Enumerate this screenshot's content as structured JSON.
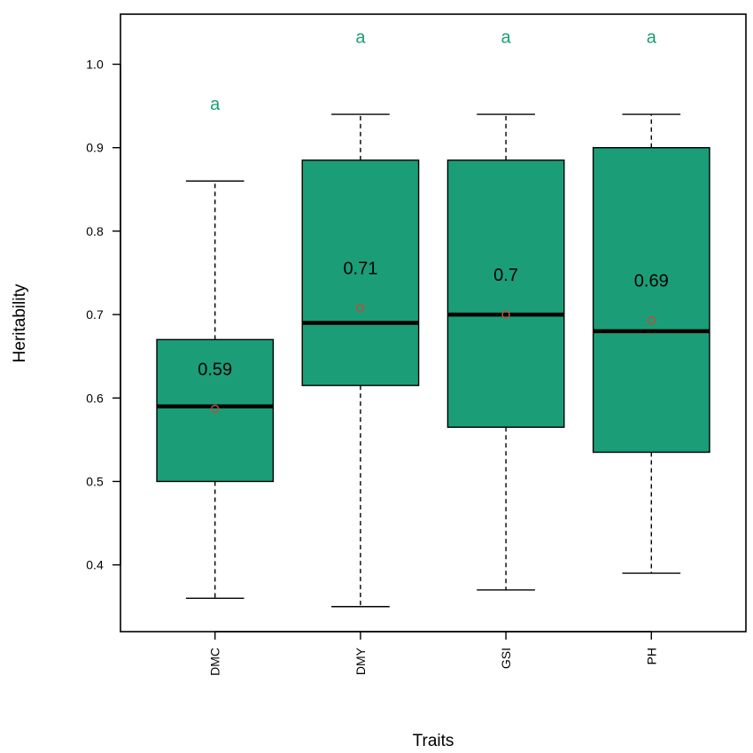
{
  "chart_data": {
    "type": "boxplot",
    "xlabel": "Traits",
    "ylabel": "Heritability",
    "ylim": [
      0.32,
      1.06
    ],
    "yticks": [
      "0.4",
      "0.5",
      "0.6",
      "0.7",
      "0.8",
      "0.9",
      "1.0"
    ],
    "categories": [
      "DMC",
      "DMY",
      "GSI",
      "PH"
    ],
    "boxes": [
      {
        "category": "DMC",
        "min": 0.36,
        "q1": 0.5,
        "median": 0.59,
        "q3": 0.67,
        "max": 0.86,
        "mean": 0.587,
        "mean_label": "0.59",
        "group": "a"
      },
      {
        "category": "DMY",
        "min": 0.35,
        "q1": 0.615,
        "median": 0.69,
        "q3": 0.885,
        "max": 0.94,
        "mean": 0.708,
        "mean_label": "0.71",
        "group": "a"
      },
      {
        "category": "GSI",
        "min": 0.37,
        "q1": 0.565,
        "median": 0.7,
        "q3": 0.885,
        "max": 0.94,
        "mean": 0.7,
        "mean_label": "0.7",
        "group": "a"
      },
      {
        "category": "PH",
        "min": 0.39,
        "q1": 0.535,
        "median": 0.68,
        "q3": 0.9,
        "max": 0.94,
        "mean": 0.693,
        "mean_label": "0.69",
        "group": "a"
      }
    ],
    "group_letter_y": [
      0.953,
      1.033,
      1.033,
      1.033
    ],
    "colors": {
      "box_fill": "#1b9e77",
      "mean_marker": "#b5513f",
      "group_letter": "#1b9e77"
    },
    "grid": false,
    "legend": "none"
  }
}
